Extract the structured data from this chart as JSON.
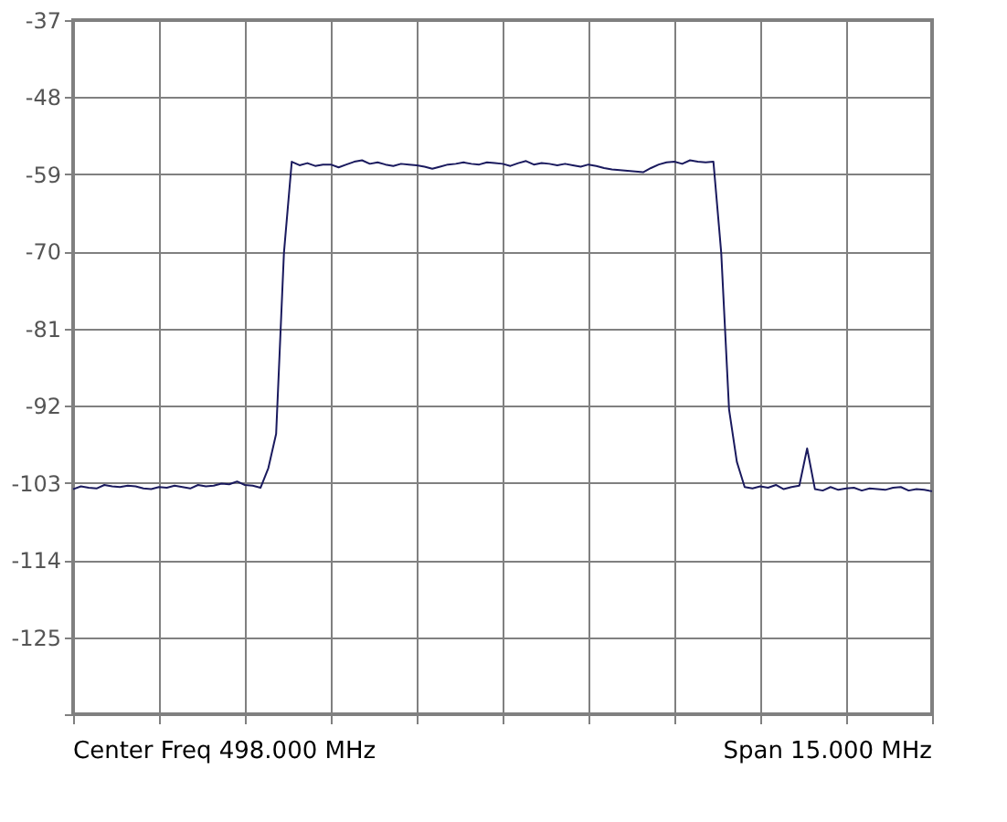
{
  "chart_data": {
    "type": "line",
    "annotations": [
      "Center Freq 498.000 MHz",
      "Span 15.000 MHz"
    ],
    "categories": [
      null,
      null,
      null,
      null,
      null,
      null,
      null,
      null,
      null,
      null,
      null,
      null,
      null,
      null,
      null,
      null,
      null,
      null,
      null,
      null,
      null,
      null,
      null,
      null,
      null,
      null,
      null,
      null,
      null,
      null,
      null,
      null,
      null,
      null,
      null,
      null,
      null,
      null,
      null,
      null,
      null,
      null,
      null,
      null,
      null,
      null,
      null,
      null,
      null,
      null,
      null,
      null,
      null,
      null,
      null,
      null,
      null,
      null,
      null,
      null,
      null,
      null,
      null,
      null,
      null,
      null,
      null,
      null,
      null,
      null,
      null,
      null,
      null,
      null,
      null,
      null,
      null,
      null,
      null,
      null,
      null,
      null,
      null,
      null,
      null,
      null,
      null,
      null,
      null,
      null,
      null,
      null,
      null,
      null,
      null,
      null,
      null,
      null,
      null,
      null,
      null,
      null,
      null,
      null,
      null,
      null,
      null,
      null,
      null,
      null,
      null
    ],
    "series": [
      {
        "color": "#1a1a5e",
        "values": [
          -103.9,
          -103.5,
          -103.7,
          -103.8,
          -103.3,
          -103.5,
          -103.6,
          -103.4,
          -103.5,
          -103.8,
          -103.9,
          -103.6,
          -103.7,
          -103.4,
          -103.6,
          -103.8,
          -103.3,
          -103.5,
          -103.4,
          -103.1,
          -103.2,
          -102.8,
          -103.3,
          -103.4,
          -103.7,
          -100.9,
          -96.0,
          -70.2,
          -57.2,
          -57.7,
          -57.4,
          -57.8,
          -57.6,
          -57.6,
          -58.0,
          -57.6,
          -57.2,
          -57.0,
          -57.5,
          -57.3,
          -57.6,
          -57.8,
          -57.5,
          -57.6,
          -57.7,
          -57.9,
          -58.2,
          -57.9,
          -57.6,
          -57.5,
          -57.3,
          -57.5,
          -57.6,
          -57.3,
          -57.4,
          -57.5,
          -57.8,
          -57.4,
          -57.1,
          -57.6,
          -57.4,
          -57.5,
          -57.7,
          -57.5,
          -57.7,
          -57.9,
          -57.6,
          -57.8,
          -58.1,
          -58.3,
          -58.4,
          -58.5,
          -58.6,
          -58.7,
          -58.1,
          -57.6,
          -57.3,
          -57.2,
          -57.5,
          -57.0,
          -57.2,
          -57.3,
          -57.2,
          -70.2,
          -92.5,
          -100.0,
          -103.6,
          -103.8,
          -103.5,
          -103.7,
          -103.3,
          -103.9,
          -103.6,
          -103.4,
          -98.1,
          -103.9,
          -104.1,
          -103.6,
          -104.0,
          -103.8,
          -103.7,
          -104.1,
          -103.8,
          -103.9,
          -104.0,
          -103.7,
          -103.6,
          -104.1,
          -103.9,
          -104.0,
          -104.2
        ]
      }
    ],
    "ylim": [
      -136,
      -37
    ],
    "yticks": [
      -37,
      -48,
      -59,
      -70,
      -81,
      -92,
      -103,
      -114,
      -125,
      {
        "value": -136,
        "label": null
      }
    ],
    "grid": true,
    "tick_labels": "y",
    "line_style": "solid",
    "marker": "none"
  }
}
